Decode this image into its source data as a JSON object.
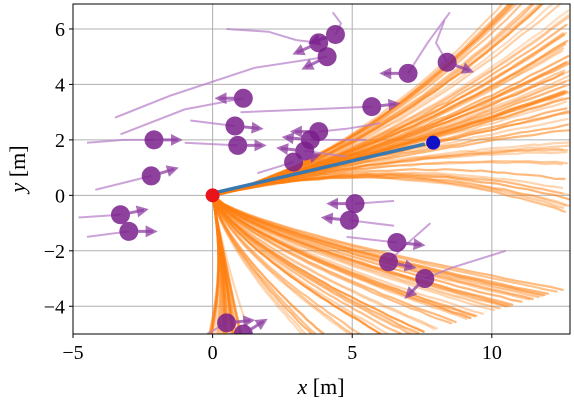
{
  "chart_data": {
    "type": "scatter",
    "title": "",
    "xlabel_var": "x",
    "xlabel_unit": " [m]",
    "ylabel_var": "y",
    "ylabel_unit": " [m]",
    "xlim": [
      -5,
      12.8
    ],
    "ylim": [
      -5,
      6.9
    ],
    "xticks": [
      -5,
      0,
      5,
      10
    ],
    "yticks": [
      -4,
      -2,
      0,
      2,
      4,
      6
    ],
    "xtick_labels": [
      "−5",
      "0",
      "5",
      "10"
    ],
    "ytick_labels": [
      "−4",
      "−2",
      "0",
      "2",
      "4",
      "6"
    ],
    "grid": true,
    "colors": {
      "robot_start": "#e8141a",
      "robot_goal": "#1010c8",
      "planned_path": "#3a78b0",
      "predicted_trajectories": "#ff7f0e",
      "pedestrian": "#7a1f8c",
      "pedestrian_history": "#b57cc7",
      "grid": "#b0b0b0"
    },
    "robot": {
      "start": [
        0,
        0
      ],
      "goal": [
        7.9,
        1.9
      ],
      "path": [
        [
          0.1,
          0.1
        ],
        [
          7.6,
          1.85
        ]
      ]
    },
    "pedestrians": [
      {
        "pos": [
          4.4,
          5.8
        ],
        "vel": [
          -0.6,
          -0.2
        ],
        "history": [
          [
            4.3,
            6.6
          ],
          [
            4.6,
            6.2
          ],
          [
            4.4,
            5.8
          ]
        ]
      },
      {
        "pos": [
          3.8,
          5.5
        ],
        "vel": [
          -0.9,
          -0.4
        ],
        "history": [
          [
            0.5,
            6.0
          ],
          [
            2.0,
            5.9
          ],
          [
            3.0,
            5.6
          ],
          [
            3.8,
            5.5
          ]
        ]
      },
      {
        "pos": [
          4.1,
          5.0
        ],
        "vel": [
          -0.8,
          -0.4
        ],
        "history": [
          [
            -3.5,
            2.8
          ],
          [
            -1.5,
            3.6
          ],
          [
            1.5,
            4.6
          ],
          [
            4.1,
            5.0
          ]
        ]
      },
      {
        "pos": [
          7.0,
          4.4
        ],
        "vel": [
          -0.9,
          0.0
        ],
        "history": [
          [
            8.5,
            6.6
          ],
          [
            7.7,
            5.5
          ],
          [
            7.0,
            4.4
          ]
        ]
      },
      {
        "pos": [
          8.4,
          4.8
        ],
        "vel": [
          0.8,
          -0.3
        ],
        "history": [
          [
            8.3,
            6.3
          ],
          [
            8.0,
            5.5
          ],
          [
            8.4,
            4.8
          ]
        ]
      },
      {
        "pos": [
          1.1,
          3.5
        ],
        "vel": [
          -1.0,
          0.0
        ],
        "history": [
          [
            -3.3,
            2.2
          ],
          [
            -1.0,
            3.1
          ],
          [
            1.1,
            3.5
          ]
        ]
      },
      {
        "pos": [
          5.7,
          3.2
        ],
        "vel": [
          0.9,
          0.1
        ],
        "history": [
          [
            1.0,
            3.0
          ],
          [
            3.5,
            3.1
          ],
          [
            5.7,
            3.2
          ]
        ]
      },
      {
        "pos": [
          -2.1,
          2.0
        ],
        "vel": [
          1.0,
          0.0
        ],
        "history": [
          [
            -4.5,
            1.9
          ],
          [
            -3.2,
            2.0
          ],
          [
            -2.1,
            2.0
          ]
        ]
      },
      {
        "pos": [
          0.8,
          2.5
        ],
        "vel": [
          1.0,
          -0.1
        ],
        "history": [
          [
            -0.8,
            2.7
          ],
          [
            0.8,
            2.5
          ]
        ]
      },
      {
        "pos": [
          3.8,
          2.3
        ],
        "vel": [
          -0.9,
          0.0
        ],
        "history": [
          [
            6.0,
            2.6
          ],
          [
            4.8,
            2.4
          ],
          [
            3.8,
            2.3
          ]
        ]
      },
      {
        "pos": [
          3.5,
          2.0
        ],
        "vel": [
          -1.0,
          0.1
        ],
        "history": [
          [
            5.5,
            2.0
          ],
          [
            3.5,
            2.0
          ]
        ]
      },
      {
        "pos": [
          0.9,
          1.8
        ],
        "vel": [
          1.0,
          0.0
        ],
        "history": [
          [
            -1.0,
            1.9
          ],
          [
            0.9,
            1.8
          ]
        ]
      },
      {
        "pos": [
          3.3,
          1.6
        ],
        "vel": [
          -0.9,
          0.1
        ],
        "history": [
          [
            4.8,
            1.4
          ],
          [
            3.3,
            1.6
          ]
        ]
      },
      {
        "pos": [
          2.9,
          1.2
        ],
        "vel": [
          0.7,
          0.2
        ],
        "history": [
          [
            1.6,
            0.8
          ],
          [
            2.9,
            1.2
          ]
        ]
      },
      {
        "pos": [
          -2.2,
          0.7
        ],
        "vel": [
          1.0,
          0.3
        ],
        "history": [
          [
            -4.2,
            0.2
          ],
          [
            -2.2,
            0.7
          ]
        ]
      },
      {
        "pos": [
          5.1,
          -0.3
        ],
        "vel": [
          -0.9,
          0.0
        ],
        "history": [
          [
            6.5,
            -0.2
          ],
          [
            5.1,
            -0.3
          ]
        ]
      },
      {
        "pos": [
          4.9,
          -0.9
        ],
        "vel": [
          -1.0,
          0.1
        ],
        "history": [
          [
            6.5,
            -1.1
          ],
          [
            4.9,
            -0.9
          ]
        ]
      },
      {
        "pos": [
          -3.3,
          -0.7
        ],
        "vel": [
          1.0,
          0.2
        ],
        "history": [
          [
            -4.8,
            -0.8
          ],
          [
            -3.3,
            -0.7
          ]
        ]
      },
      {
        "pos": [
          -3.0,
          -1.3
        ],
        "vel": [
          1.0,
          0.0
        ],
        "history": [
          [
            -4.5,
            -1.5
          ],
          [
            -3.0,
            -1.3
          ]
        ]
      },
      {
        "pos": [
          6.6,
          -1.7
        ],
        "vel": [
          1.0,
          -0.1
        ],
        "history": [
          [
            4.8,
            -1.5
          ],
          [
            6.6,
            -1.7
          ]
        ]
      },
      {
        "pos": [
          6.3,
          -2.4
        ],
        "vel": [
          0.9,
          -0.2
        ],
        "history": [
          [
            7.8,
            -1.0
          ],
          [
            6.9,
            -1.8
          ],
          [
            6.3,
            -2.4
          ]
        ]
      },
      {
        "pos": [
          7.6,
          -3.0
        ],
        "vel": [
          -0.6,
          -0.6
        ],
        "history": [
          [
            10.5,
            -2.0
          ],
          [
            8.6,
            -2.6
          ],
          [
            7.6,
            -3.0
          ]
        ]
      },
      {
        "pos": [
          0.5,
          -4.6
        ],
        "vel": [
          1.0,
          0.1
        ],
        "history": [
          [
            -0.2,
            -5.0
          ],
          [
            0.5,
            -4.6
          ]
        ]
      },
      {
        "pos": [
          1.1,
          -5.0
        ],
        "vel": [
          0.8,
          0.5
        ],
        "history": [
          [
            0.6,
            -5.0
          ],
          [
            1.1,
            -5.0
          ]
        ]
      }
    ]
  }
}
